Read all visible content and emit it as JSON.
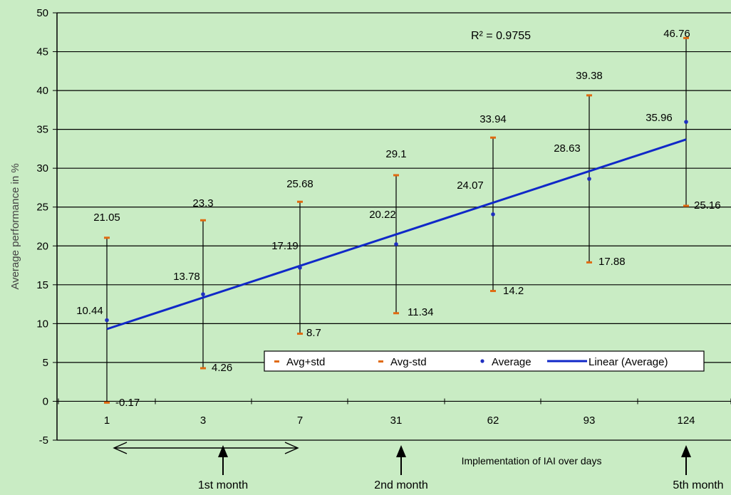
{
  "chart_data": {
    "type": "scatter",
    "categories": [
      "1",
      "3",
      "7",
      "31",
      "62",
      "93",
      "124"
    ],
    "series": [
      {
        "name": "Avg+std",
        "values": [
          21.05,
          23.3,
          25.68,
          29.1,
          33.94,
          39.38,
          46.76
        ],
        "color": "#e06a10",
        "marker": "dash"
      },
      {
        "name": "Avg-std",
        "values": [
          -0.17,
          4.26,
          8.7,
          11.34,
          14.2,
          17.88,
          25.16
        ],
        "color": "#e06a10",
        "marker": "dash"
      },
      {
        "name": "Average",
        "values": [
          10.44,
          13.78,
          17.19,
          20.22,
          24.07,
          28.63,
          35.96
        ],
        "color": "#1f2fc0",
        "marker": "dot"
      },
      {
        "name": "Linear (Average)",
        "type": "trendline",
        "from": 9.3,
        "to": 33.7,
        "color": "#1028c8"
      }
    ],
    "labels": {
      "upper": [
        "21.05",
        "23.3",
        "25.68",
        "29.1",
        "33.94",
        "39.38",
        "46.76"
      ],
      "lower": [
        "-0.17",
        "4.26",
        "8.7",
        "11.34",
        "14.2",
        "17.88",
        "25.16"
      ],
      "average": [
        "10.44",
        "13.78",
        "17.19",
        "20.22",
        "24.07",
        "28.63",
        "35.96"
      ]
    },
    "r_squared": "R² = 0.9755",
    "ylabel": "Average performance in %",
    "xlabel": "Implementation of IAI over days",
    "ylim": [
      -5,
      50
    ],
    "yticks": [
      "50",
      "45",
      "40",
      "35",
      "30",
      "25",
      "20",
      "15",
      "10",
      "5",
      "0",
      "-5"
    ],
    "grid": true,
    "legend_position": "bottom-right",
    "month_markers": [
      "1st month",
      "2nd month",
      "5th month"
    ],
    "colors": {
      "plot_bg": "#c9ecc4",
      "grid": "#000000",
      "trend": "#1028c8",
      "avg": "#1f2fc0",
      "std": "#e06a10"
    }
  }
}
